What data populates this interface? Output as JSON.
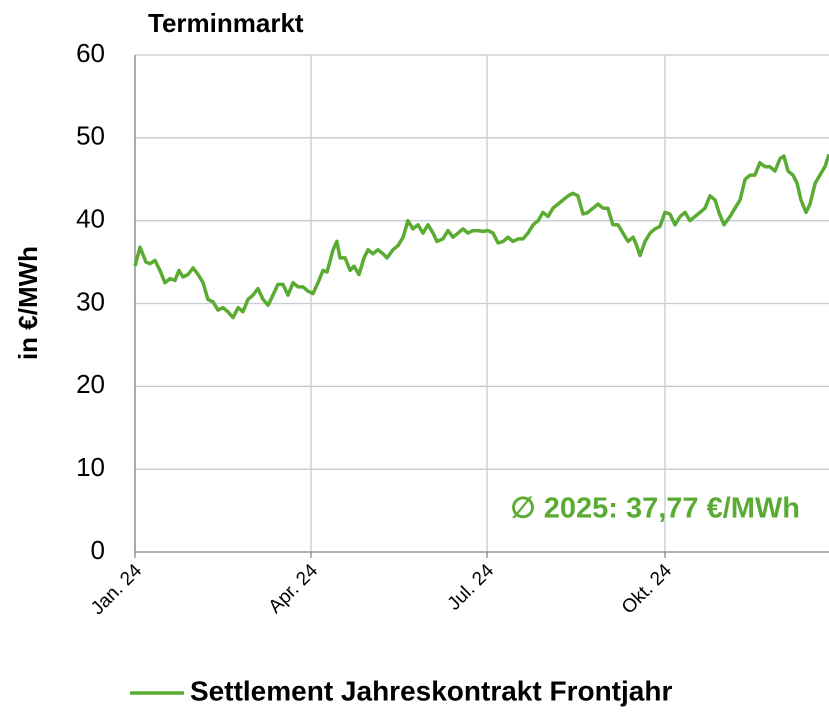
{
  "chart_data": {
    "type": "line",
    "title": "Terminmarkt",
    "ylabel": "in €/MWh",
    "annotation": "∅ 2025: 37,77 €/MWh",
    "x": [
      0,
      2.6,
      5.7,
      7.8,
      10.3,
      12.9,
      15.5,
      18.1,
      20.7,
      22.7,
      24.8,
      27.4,
      30,
      32.6,
      35.2,
      37.7,
      40.3,
      42.9,
      45.5,
      48.1,
      50.7,
      53.3,
      55.8,
      58.4,
      61,
      63.6,
      66.2,
      68.8,
      71.3,
      73.9,
      76.5,
      79.1,
      81.7,
      84.3,
      86.9,
      89.4,
      92,
      94.6,
      97.2,
      99.3,
      102.4,
      104.4,
      106,
      108.6,
      111.2,
      113.2,
      115.8,
      118.4,
      120.5,
      123,
      125.6,
      128.2,
      130.3,
      133.4,
      136,
      138.6,
      141.1,
      143.7,
      146.3,
      148.9,
      151.5,
      154.1,
      156.1,
      159.2,
      161.8,
      164.4,
      167,
      169.6,
      172.2,
      174.7,
      177.3,
      179.9,
      182.5,
      185.1,
      187.7,
      190.3,
      192.8,
      195.4,
      198,
      200.6,
      203.2,
      205.8,
      208.4,
      210.9,
      213.5,
      216.1,
      218.7,
      221.3,
      223.9,
      226.4,
      229,
      231.6,
      234.2,
      236.8,
      239.4,
      242,
      244.5,
      247.1,
      249.7,
      252.3,
      254.9,
      257.5,
      259,
      261.1,
      263.7,
      266.3,
      268.8,
      271.4,
      274,
      276.6,
      279.2,
      281.8,
      284.4,
      286.9,
      289.5,
      292.1,
      294.7,
      297.3,
      299.9,
      301.9,
      304.5,
      307.6,
      310.2,
      312.8,
      315.4,
      318,
      320.5,
      323.1,
      325.7,
      328.3,
      330.9,
      333.5,
      335.5,
      337.6,
      340.2,
      342.3,
      344.3,
      346.9,
      349,
      351.6,
      354.1,
      356.7,
      358.8
    ],
    "series": [
      {
        "name": "Settlement Jahreskontrakt Frontjahr",
        "color": "#5aab32",
        "values": [
          34.5,
          36.8,
          35,
          34.8,
          35.2,
          34,
          32.5,
          33,
          32.8,
          34,
          33.2,
          33.5,
          34.3,
          33.5,
          32.5,
          30.5,
          30.2,
          29.2,
          29.5,
          29,
          28.3,
          29.5,
          29,
          30.5,
          31,
          31.8,
          30.5,
          29.8,
          31,
          32.3,
          32.3,
          31,
          32.5,
          32,
          32,
          31.5,
          31.2,
          32.5,
          34,
          33.8,
          36.5,
          37.5,
          35.5,
          35.5,
          34,
          34.5,
          33.5,
          35.5,
          36.5,
          36,
          36.5,
          36,
          35.5,
          36.5,
          37,
          38,
          40,
          39,
          39.5,
          38.5,
          39.5,
          38.5,
          37.5,
          37.8,
          38.8,
          38,
          38.5,
          39,
          38.5,
          38.8,
          38.8,
          38.7,
          38.8,
          38.5,
          37.3,
          37.5,
          38,
          37.5,
          37.8,
          37.8,
          38.5,
          39.5,
          40,
          41,
          40.5,
          41.5,
          42,
          42.5,
          43,
          43.3,
          43,
          40.8,
          41,
          41.5,
          42,
          41.5,
          41.5,
          39.5,
          39.5,
          38.5,
          37.5,
          38,
          37.2,
          35.8,
          37.5,
          38.5,
          39,
          39.3,
          41,
          40.8,
          39.5,
          40.5,
          41,
          40,
          40.5,
          41,
          41.5,
          43,
          42.5,
          41,
          39.5,
          40.5,
          41.5,
          42.5,
          45,
          45.5,
          45.5,
          47,
          46.5,
          46.5,
          46,
          47.5,
          47.8,
          46,
          45.5,
          44.5,
          42.5,
          41,
          42,
          44.5,
          45.5,
          46.5,
          48
        ]
      }
    ],
    "xlim": [
      0,
      358.8
    ],
    "xticks": [
      {
        "value": 0,
        "label": "Jan. 24"
      },
      {
        "value": 91,
        "label": "Apr. 24"
      },
      {
        "value": 182,
        "label": "Jul. 24"
      },
      {
        "value": 274,
        "label": "Okt. 24"
      }
    ],
    "ylim": [
      0,
      60
    ],
    "yticks": [
      0,
      10,
      20,
      30,
      40,
      50,
      60
    ],
    "grid": true,
    "legend": "bottom"
  }
}
